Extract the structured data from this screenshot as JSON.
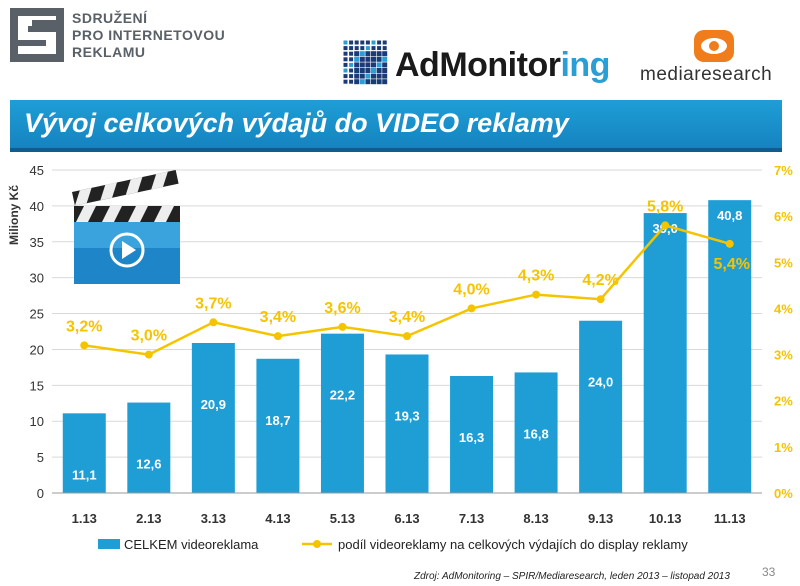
{
  "logos": {
    "sir": {
      "lines": [
        "SDRUŽENÍ",
        "PRO INTERNETOVOU",
        "REKLAMU"
      ]
    },
    "admonitoring": {
      "name_main": "AdMonitor",
      "name_accent": "ing"
    },
    "mediaresearch": {
      "name": "mediaresearch"
    }
  },
  "banner": {
    "title": "Vývoj celkových výdajů do VIDEO reklamy"
  },
  "chart_data": {
    "type": "bar",
    "categories": [
      "1.13",
      "2.13",
      "3.13",
      "4.13",
      "5.13",
      "6.13",
      "7.13",
      "8.13",
      "9.13",
      "10.13",
      "11.13"
    ],
    "series": [
      {
        "name": "CELKEM videoreklama",
        "type": "bar",
        "axis": "left",
        "values": [
          11.1,
          12.6,
          20.9,
          18.7,
          22.2,
          19.3,
          16.3,
          16.8,
          24.0,
          39.0,
          40.8
        ],
        "labels": [
          "11,1",
          "12,6",
          "20,9",
          "18,7",
          "22,2",
          "19,3",
          "16,3",
          "16,8",
          "24,0",
          "39,0",
          "40,8"
        ],
        "color": "#1f9ed6"
      },
      {
        "name": "podíl videoreklamy na celkových výdajích do display reklamy",
        "type": "line",
        "axis": "right",
        "values": [
          3.2,
          3.0,
          3.7,
          3.4,
          3.6,
          3.4,
          4.0,
          4.3,
          4.2,
          5.8,
          5.4
        ],
        "labels": [
          "3,2%",
          "3,0%",
          "3,7%",
          "3,4%",
          "3,6%",
          "3,4%",
          "4,0%",
          "4,3%",
          "4,2%",
          "5,8%",
          "5,4%"
        ],
        "color": "#f5c400"
      }
    ],
    "ylabel": "Miliony Kč",
    "ylim": [
      0,
      45
    ],
    "yticks": [
      "0",
      "5",
      "10",
      "15",
      "20",
      "25",
      "30",
      "35",
      "40",
      "45"
    ],
    "y2lim": [
      0,
      7
    ],
    "y2ticks": [
      "0%",
      "1%",
      "2%",
      "3%",
      "4%",
      "5%",
      "6%",
      "7%"
    ],
    "grid": true,
    "legend_position": "bottom"
  },
  "footer": {
    "source": "Zdroj: AdMonitoring – SPIR/Mediaresearch, leden 2013 – listopad 2013",
    "page": "33"
  },
  "colors": {
    "banner": "#1f9ed6",
    "bar": "#1f9ed6",
    "line": "#f5c400"
  },
  "icons": [
    "sir-logo-icon",
    "admonitoring-grid-icon",
    "mediaresearch-eye-icon",
    "clapperboard-icon",
    "play-icon"
  ]
}
